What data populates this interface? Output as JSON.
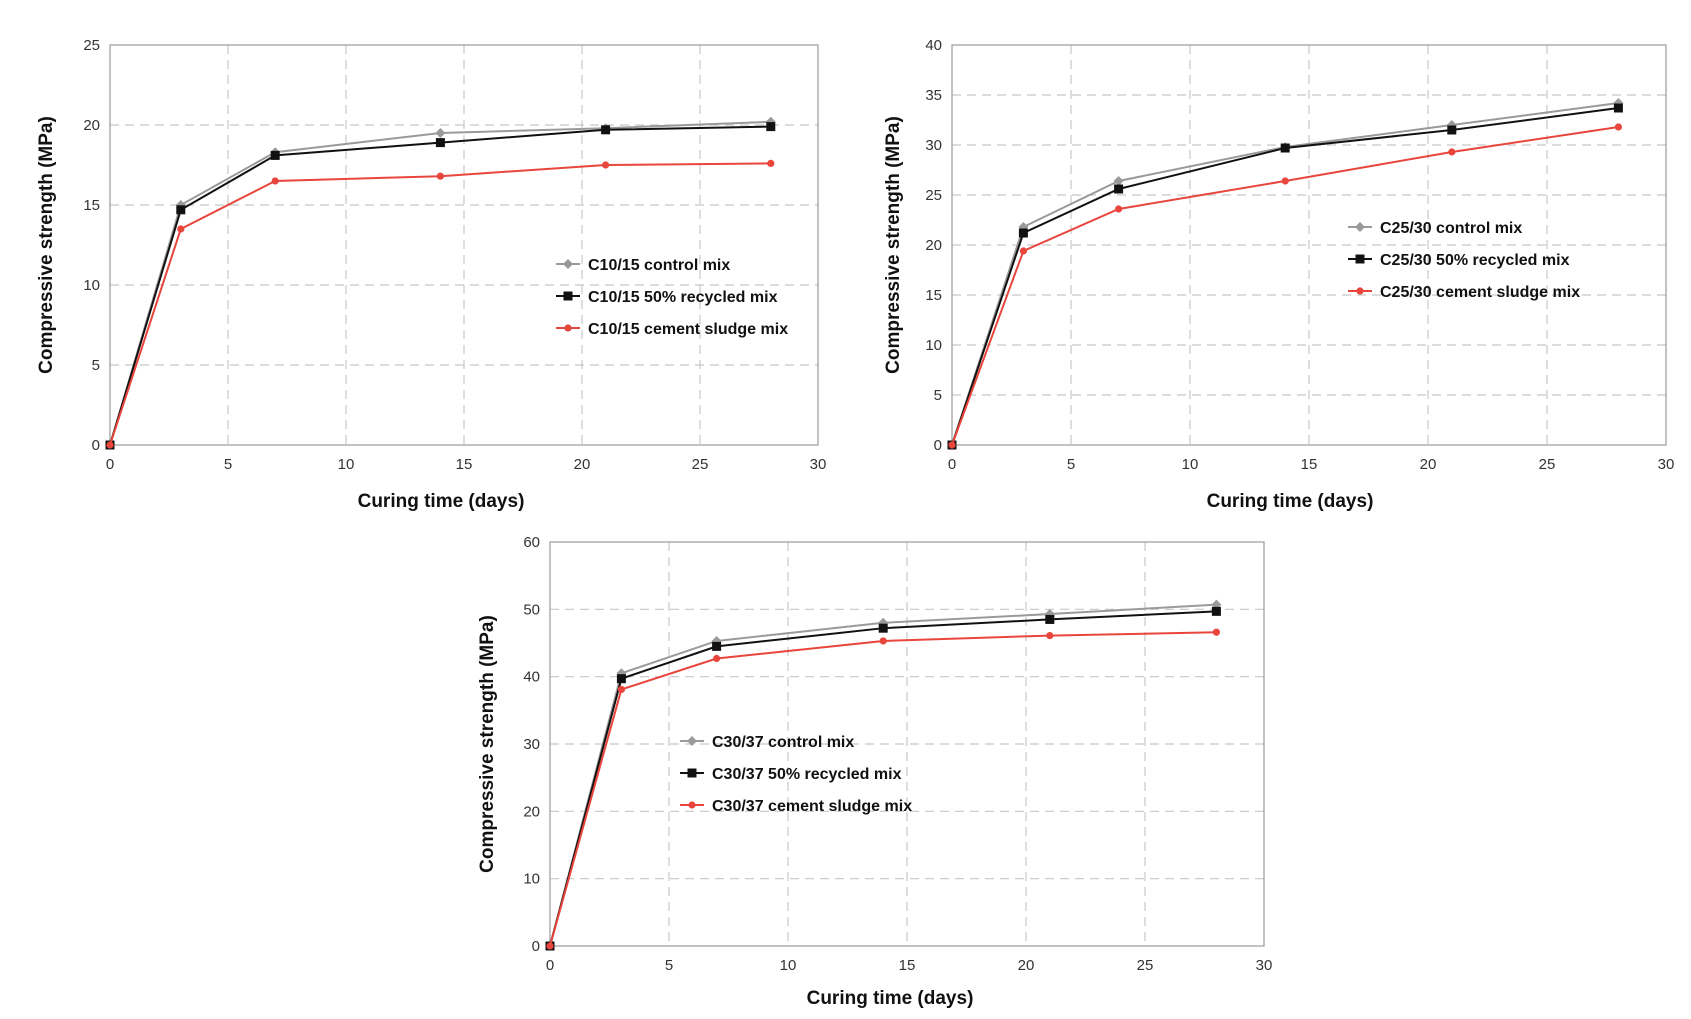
{
  "chart_data": [
    {
      "type": "line",
      "id": "c10",
      "xlabel": "Curing time (days)",
      "ylabel": "Compressive strength (MPa)",
      "xlim": [
        0,
        30
      ],
      "ylim": [
        0,
        25
      ],
      "xticks": [
        "0",
        "5",
        "10",
        "15",
        "20",
        "25",
        "30"
      ],
      "yticks": [
        "0",
        "5",
        "10",
        "15",
        "20",
        "25"
      ],
      "grid": true,
      "legend_position": "center-right",
      "x": [
        0,
        3,
        7,
        14,
        21,
        28
      ],
      "series": [
        {
          "name": "C10/15 control mix",
          "color": "#9a9a9a",
          "marker": "diamond",
          "values": [
            0,
            15.0,
            18.3,
            19.5,
            19.8,
            20.2
          ]
        },
        {
          "name": "C10/15 50% recycled mix",
          "color": "#111111",
          "marker": "square",
          "values": [
            0,
            14.7,
            18.1,
            18.9,
            19.7,
            19.9
          ]
        },
        {
          "name": "C10/15 cement sludge mix",
          "color": "#e8453c",
          "marker": "circle",
          "values": [
            0,
            13.5,
            16.5,
            16.8,
            17.5,
            17.6
          ]
        }
      ]
    },
    {
      "type": "line",
      "id": "c25",
      "xlabel": "Curing time (days)",
      "ylabel": "Compressive strength (MPa)",
      "xlim": [
        0,
        30
      ],
      "ylim": [
        0,
        40
      ],
      "xticks": [
        "0",
        "5",
        "10",
        "15",
        "20",
        "25",
        "30"
      ],
      "yticks": [
        "0",
        "5",
        "10",
        "15",
        "20",
        "25",
        "30",
        "35",
        "40"
      ],
      "grid": true,
      "legend_position": "center-right",
      "x": [
        0,
        3,
        7,
        14,
        21,
        28
      ],
      "series": [
        {
          "name": "C25/30 control mix",
          "color": "#9a9a9a",
          "marker": "diamond",
          "values": [
            0,
            21.8,
            26.4,
            29.8,
            32.0,
            34.2
          ]
        },
        {
          "name": "C25/30 50% recycled mix",
          "color": "#111111",
          "marker": "square",
          "values": [
            0,
            21.2,
            25.6,
            29.7,
            31.5,
            33.7
          ]
        },
        {
          "name": "C25/30 cement sludge mix",
          "color": "#e8453c",
          "marker": "circle",
          "values": [
            0,
            19.4,
            23.6,
            26.4,
            29.3,
            31.8
          ]
        }
      ]
    },
    {
      "type": "line",
      "id": "c30",
      "xlabel": "Curing time (days)",
      "ylabel": "Compressive strength (MPa)",
      "xlim": [
        0,
        30
      ],
      "ylim": [
        0,
        60
      ],
      "xticks": [
        "0",
        "5",
        "10",
        "15",
        "20",
        "25",
        "30"
      ],
      "yticks": [
        "0",
        "10",
        "20",
        "30",
        "40",
        "50",
        "60"
      ],
      "grid": true,
      "legend_position": "center-left",
      "x": [
        0,
        3,
        7,
        14,
        21,
        28
      ],
      "series": [
        {
          "name": "C30/37 control mix",
          "color": "#9a9a9a",
          "marker": "diamond",
          "values": [
            0,
            40.5,
            45.3,
            48.0,
            49.3,
            50.7
          ]
        },
        {
          "name": "C30/37 50% recycled mix",
          "color": "#111111",
          "marker": "square",
          "values": [
            0,
            39.7,
            44.5,
            47.2,
            48.5,
            49.7
          ]
        },
        {
          "name": "C30/37 cement sludge mix",
          "color": "#e8453c",
          "marker": "circle",
          "values": [
            0,
            38.1,
            42.7,
            45.3,
            46.1,
            46.6
          ]
        }
      ]
    }
  ]
}
